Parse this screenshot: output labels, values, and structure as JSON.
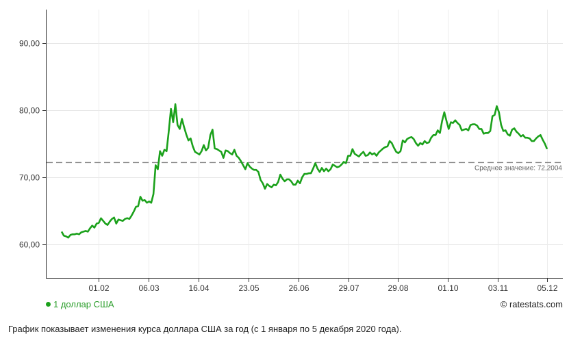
{
  "chart_data": {
    "type": "line",
    "xlabel": "",
    "ylabel": "",
    "ylim": [
      55,
      96
    ],
    "y_ticks": [
      "60,00",
      "70,00",
      "80,00",
      "90,00"
    ],
    "x_ticks": [
      "01.02",
      "06.03",
      "16.04",
      "23.05",
      "26.06",
      "29.07",
      "29.08",
      "01.10",
      "03.11",
      "05.12"
    ],
    "series": [
      {
        "name": "1 доллар США",
        "color": "#1ba11b",
        "values": [
          61.9,
          61.3,
          61.2,
          61.0,
          61.4,
          61.5,
          61.5,
          61.6,
          61.5,
          61.8,
          61.9,
          62.0,
          61.9,
          62.4,
          62.8,
          62.5,
          63.1,
          63.2,
          63.9,
          63.5,
          63.1,
          62.9,
          63.4,
          63.8,
          64.0,
          63.1,
          63.7,
          63.6,
          63.5,
          63.8,
          63.9,
          63.8,
          64.3,
          64.9,
          65.6,
          65.7,
          67.1,
          66.5,
          66.6,
          66.2,
          66.4,
          66.2,
          67.5,
          71.8,
          71.2,
          73.9,
          73.2,
          74.1,
          73.9,
          76.9,
          80.2,
          78.2,
          80.9,
          77.8,
          77.2,
          78.7,
          77.5,
          76.4,
          75.5,
          75.8,
          74.6,
          73.8,
          73.6,
          73.4,
          73.9,
          74.8,
          74.0,
          74.4,
          76.3,
          77.1,
          74.3,
          74.2,
          74.0,
          73.8,
          72.9,
          74.0,
          73.9,
          73.6,
          73.4,
          74.1,
          73.2,
          72.9,
          72.4,
          71.8,
          71.2,
          72.1,
          71.6,
          71.3,
          71.1,
          71.1,
          70.8,
          69.6,
          69.1,
          68.3,
          69.0,
          68.7,
          68.5,
          68.9,
          68.8,
          69.3,
          70.4,
          69.8,
          69.4,
          69.7,
          69.7,
          69.4,
          68.9,
          68.9,
          69.5,
          69.1,
          70.0,
          70.5,
          70.5,
          70.6,
          70.6,
          71.3,
          72.1,
          71.3,
          70.8,
          71.4,
          70.9,
          71.3,
          70.9,
          71.2,
          71.9,
          71.7,
          71.5,
          71.6,
          71.9,
          72.3,
          72.1,
          73.2,
          73.2,
          74.2,
          73.5,
          73.3,
          73.1,
          73.5,
          73.8,
          73.2,
          73.3,
          73.7,
          73.4,
          73.6,
          73.2,
          73.7,
          74.0,
          74.3,
          74.5,
          74.6,
          75.4,
          75.1,
          74.4,
          73.8,
          73.6,
          73.9,
          75.5,
          75.2,
          75.7,
          75.9,
          76.0,
          75.7,
          75.1,
          74.7,
          75.1,
          74.9,
          75.4,
          75.1,
          75.2,
          75.9,
          76.3,
          76.3,
          77.0,
          76.6,
          78.4,
          79.7,
          78.4,
          77.2,
          78.2,
          78.1,
          78.5,
          78.1,
          77.8,
          77.0,
          77.1,
          77.2,
          77.0,
          77.8,
          77.9,
          77.9,
          77.7,
          77.2,
          77.2,
          76.5,
          76.6,
          76.6,
          76.9,
          79.1,
          79.3,
          80.6,
          79.7,
          77.8,
          76.9,
          77.0,
          76.4,
          76.2,
          77.1,
          77.3,
          76.8,
          76.5,
          76.1,
          76.3,
          75.9,
          75.9,
          75.8,
          75.4,
          75.4,
          75.8,
          76.1,
          76.3,
          75.6,
          75.0,
          74.2
        ]
      }
    ],
    "average": {
      "value": 72.2004,
      "label": "Среднее значение: 72,2004"
    },
    "grid": true
  },
  "legend": {
    "label": "1 доллар США"
  },
  "copyright": "© ratestats.com",
  "caption": "График показывает изменения курса доллара США за год (с 1 января по 5 декабря 2020 года)."
}
